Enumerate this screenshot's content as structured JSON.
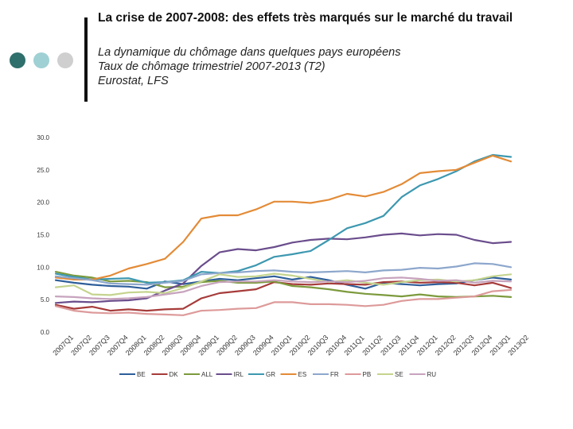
{
  "slide": {
    "title": "La crise de 2007-2008: des effets très marqués sur le marché du travail",
    "subtitle_lines": [
      "La dynamique du chômage dans quelques pays européens",
      "Taux de chômage trimestriel 2007-2013 (T2)",
      "Eurostat, LFS"
    ],
    "dot_colors": [
      "#2f6f6c",
      "#9fd0d4",
      "#cfcfcf"
    ]
  },
  "chart_data": {
    "type": "line",
    "title": "Taux de chômage trimestriel 2007-2013 (T2)",
    "xlabel": "",
    "ylabel": "",
    "ylim": [
      0,
      30
    ],
    "yticks": [
      "0.0",
      "5.0",
      "10.0",
      "15.0",
      "20.0",
      "25.0",
      "30.0"
    ],
    "grid": false,
    "legend_position": "bottom",
    "categories": [
      "2007Q1",
      "2007Q2",
      "2007Q3",
      "2007Q4",
      "2008Q1",
      "2008Q2",
      "2008Q3",
      "2008Q4",
      "2009Q1",
      "2009Q2",
      "2009Q3",
      "2009Q4",
      "2010Q1",
      "2010Q2",
      "2010Q3",
      "2010Q4",
      "2011Q1",
      "2011Q2",
      "2011Q3",
      "2011Q4",
      "2012Q1",
      "2012Q2",
      "2012Q3",
      "2012Q4",
      "2013Q1",
      "2013Q2"
    ],
    "series": [
      {
        "name": "BE",
        "color": "#2e5e9a",
        "values": [
          8.0,
          7.6,
          7.3,
          7.1,
          7.0,
          6.7,
          7.8,
          7.4,
          7.8,
          8.2,
          8.0,
          8.3,
          8.6,
          8.1,
          8.5,
          8.0,
          7.3,
          6.7,
          7.6,
          7.4,
          7.2,
          7.4,
          7.5,
          8.0,
          8.4,
          8.1
        ]
      },
      {
        "name": "DK",
        "color": "#a63c3a",
        "values": [
          4.2,
          3.6,
          3.9,
          3.3,
          3.5,
          3.3,
          3.5,
          3.6,
          5.2,
          6.0,
          6.3,
          6.6,
          7.7,
          7.4,
          7.3,
          7.5,
          7.4,
          7.3,
          7.7,
          7.8,
          7.6,
          7.7,
          7.6,
          7.2,
          7.6,
          6.8
        ]
      },
      {
        "name": "ALL",
        "color": "#7c9a3d",
        "values": [
          9.3,
          8.7,
          8.4,
          7.8,
          7.9,
          7.7,
          6.9,
          7.0,
          7.7,
          7.9,
          7.6,
          7.6,
          7.8,
          7.1,
          6.9,
          6.6,
          6.2,
          5.9,
          5.7,
          5.5,
          5.8,
          5.5,
          5.4,
          5.5,
          5.6,
          5.4
        ]
      },
      {
        "name": "IRL",
        "color": "#6a4d8c",
        "values": [
          4.5,
          4.7,
          4.6,
          4.8,
          4.9,
          5.2,
          6.4,
          7.5,
          10.2,
          12.3,
          12.8,
          12.6,
          13.1,
          13.8,
          14.2,
          14.4,
          14.3,
          14.6,
          15.0,
          15.2,
          14.9,
          15.1,
          15.0,
          14.2,
          13.7,
          13.9
        ]
      },
      {
        "name": "GR",
        "color": "#3d98b0",
        "values": [
          9.0,
          8.5,
          8.1,
          8.2,
          8.3,
          7.6,
          7.7,
          8.0,
          9.3,
          9.1,
          9.4,
          10.3,
          11.6,
          12.0,
          12.5,
          14.2,
          16.0,
          16.8,
          17.9,
          20.8,
          22.6,
          23.6,
          24.8,
          26.3,
          27.3,
          27.0
        ]
      },
      {
        "name": "ES",
        "color": "#e38b37",
        "values": [
          8.4,
          8.1,
          8.1,
          8.7,
          9.8,
          10.5,
          11.3,
          13.9,
          17.5,
          18.0,
          18.0,
          18.9,
          20.1,
          20.1,
          19.9,
          20.4,
          21.3,
          20.9,
          21.6,
          22.8,
          24.5,
          24.8,
          25.0,
          26.1,
          27.2,
          26.3
        ]
      },
      {
        "name": "FR",
        "color": "#8da7cc",
        "values": [
          8.6,
          8.3,
          8.0,
          7.5,
          7.4,
          7.3,
          7.6,
          7.9,
          8.9,
          9.1,
          9.2,
          9.4,
          9.5,
          9.3,
          9.2,
          9.3,
          9.4,
          9.2,
          9.5,
          9.6,
          9.9,
          9.8,
          10.1,
          10.6,
          10.5,
          10.0
        ]
      },
      {
        "name": "PB",
        "color": "#dd9a9a",
        "values": [
          4.0,
          3.3,
          3.0,
          2.9,
          3.0,
          2.8,
          2.7,
          2.6,
          3.3,
          3.4,
          3.6,
          3.7,
          4.6,
          4.6,
          4.3,
          4.3,
          4.2,
          4.0,
          4.2,
          4.8,
          5.1,
          5.1,
          5.3,
          5.5,
          6.3,
          6.5
        ]
      },
      {
        "name": "SE",
        "color": "#c4d48e",
        "values": [
          6.9,
          7.2,
          5.8,
          5.7,
          6.1,
          6.2,
          6.0,
          6.8,
          7.8,
          8.9,
          8.5,
          8.6,
          9.0,
          8.7,
          8.2,
          7.7,
          8.0,
          7.6,
          7.3,
          7.7,
          8.0,
          8.1,
          7.8,
          8.0,
          8.6,
          8.9
        ]
      },
      {
        "name": "RU",
        "color": "#c7a3bd",
        "values": [
          5.5,
          5.4,
          5.2,
          5.1,
          5.2,
          5.4,
          5.8,
          6.2,
          7.1,
          7.7,
          7.8,
          7.8,
          8.0,
          7.8,
          7.7,
          7.8,
          7.7,
          7.9,
          8.3,
          8.4,
          8.2,
          7.9,
          8.0,
          7.6,
          7.9,
          7.8
        ]
      }
    ]
  }
}
